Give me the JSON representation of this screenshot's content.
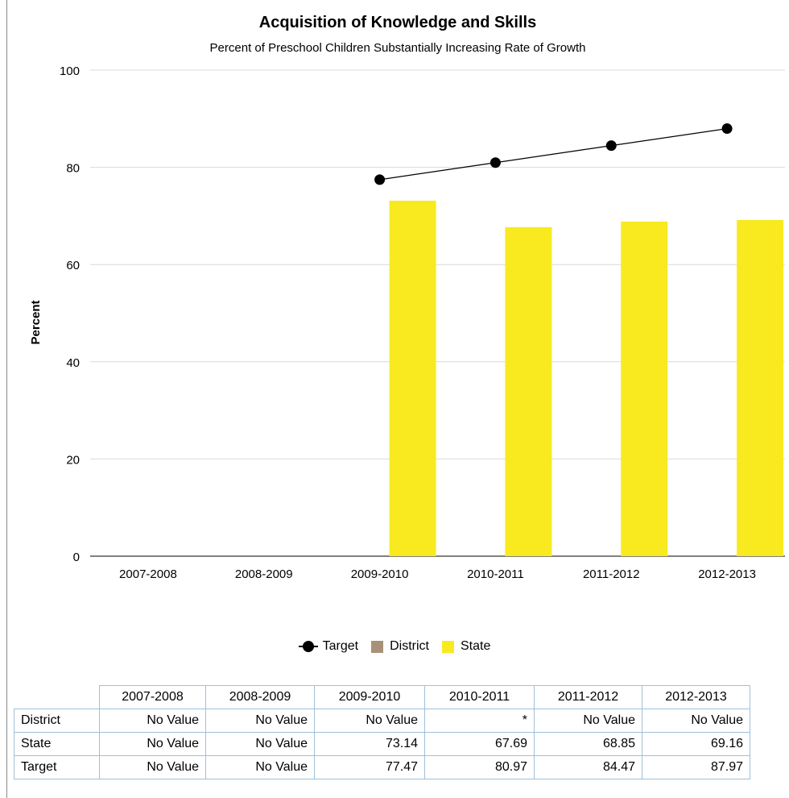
{
  "chart_data": {
    "type": "bar",
    "title": "Acquisition of Knowledge and Skills",
    "subtitle": "Percent of Preschool Children Substantially Increasing Rate of Growth",
    "ylabel": "Percent",
    "xlabel": "",
    "ylim": [
      0,
      100
    ],
    "yticks": [
      0,
      20,
      40,
      60,
      80,
      100
    ],
    "grid": true,
    "categories": [
      "2007-2008",
      "2008-2009",
      "2009-2010",
      "2010-2011",
      "2011-2012",
      "2012-2013"
    ],
    "series": [
      {
        "name": "Target",
        "kind": "line",
        "color": "#000000",
        "values": [
          null,
          null,
          77.47,
          80.97,
          84.47,
          87.97
        ]
      },
      {
        "name": "District",
        "kind": "bar",
        "color": "#a89178",
        "values": [
          null,
          null,
          null,
          null,
          null,
          null
        ]
      },
      {
        "name": "State",
        "kind": "bar",
        "color": "#f8ea1f",
        "values": [
          null,
          null,
          73.14,
          67.69,
          68.85,
          69.16
        ]
      }
    ],
    "legend_position": "bottom-center"
  },
  "table": {
    "headers": [
      "2007-2008",
      "2008-2009",
      "2009-2010",
      "2010-2011",
      "2011-2012",
      "2012-2013"
    ],
    "rows": [
      {
        "label": "District",
        "cells": [
          "No Value",
          "No Value",
          "No Value",
          "*",
          "No Value",
          "No Value"
        ]
      },
      {
        "label": "State",
        "cells": [
          "No Value",
          "No Value",
          "73.14",
          "67.69",
          "68.85",
          "69.16"
        ]
      },
      {
        "label": "Target",
        "cells": [
          "No Value",
          "No Value",
          "77.47",
          "80.97",
          "84.47",
          "87.97"
        ]
      }
    ]
  }
}
